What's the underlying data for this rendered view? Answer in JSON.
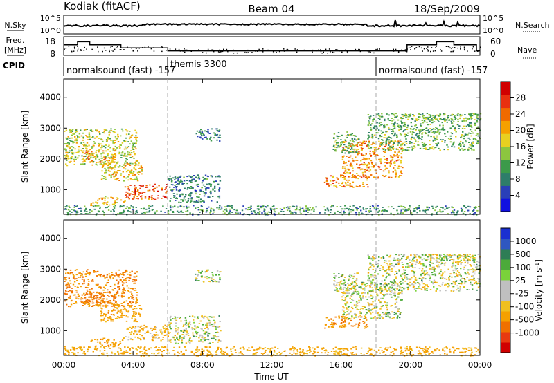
{
  "header": {
    "radar": "Kodiak (fitACF)",
    "beam": "Beam 04",
    "date": "18/Sep/2009"
  },
  "strip_labels": {
    "nsky": "N.Sky",
    "nsearch": "N.Search",
    "freq_line1": "Freq.",
    "freq_line2": "[MHz]",
    "nave": "Nave",
    "cpid": "CPID"
  },
  "noise_ticks_left": [
    "10^5",
    "10^0"
  ],
  "noise_ticks_right": [
    "10^5",
    "10^0"
  ],
  "freq_ticks_left": [
    "18",
    "8"
  ],
  "nave_ticks_right": [
    "60",
    "0"
  ],
  "cpid_segments": [
    {
      "label": "normalsound (fast) -157",
      "start_hour": 0
    },
    {
      "label": "themis 3300",
      "start_hour": 6
    },
    {
      "label": "normalsound (fast) -157",
      "start_hour": 18
    }
  ],
  "time_axis": {
    "label": "Time UT",
    "range_hours": [
      0,
      24
    ],
    "ticks": [
      "00:00",
      "04:00",
      "08:00",
      "12:00",
      "16:00",
      "20:00",
      "00:00"
    ]
  },
  "range_axis": {
    "label": "Slant Range [km]",
    "range_km": [
      200,
      4600
    ],
    "ticks": [
      "1000",
      "2000",
      "3000",
      "4000"
    ]
  },
  "power_colorbar": {
    "label": "Power [dB]",
    "ticks": [
      "4",
      "8",
      "12",
      "16",
      "20",
      "24",
      "28"
    ],
    "colors": [
      "#1010e0",
      "#2a3fb8",
      "#2e7d6a",
      "#3c9a4a",
      "#8cc63f",
      "#e8d020",
      "#f5a000",
      "#f06a00",
      "#e83010",
      "#d00000"
    ]
  },
  "velocity_colorbar": {
    "label": "Velocity [m s",
    "label_sup": "-1",
    "label_end": "]",
    "ticks": [
      "1000",
      "500",
      "100",
      "25",
      "-25",
      "-100",
      "-500",
      "-1000"
    ],
    "colors": [
      "#1a2fd0",
      "#2f57c0",
      "#2e7d55",
      "#4caa3a",
      "#7ad23a",
      "#c0c0c0",
      "#c0c0c0",
      "#f0c020",
      "#f5a000",
      "#f07000",
      "#e83a10",
      "#d00000"
    ]
  },
  "chart_data": {
    "type": "heatmap",
    "panels": [
      "Power [dB]",
      "Velocity [m s-1]"
    ],
    "x_unit": "hours UT",
    "y_unit": "km",
    "xlim": [
      0,
      24
    ],
    "ylim": [
      200,
      4600
    ],
    "scatter_regions": [
      {
        "x": [
          0.0,
          4.2
        ],
        "y": [
          1800,
          3000
        ],
        "power": 16,
        "velocity": -300
      },
      {
        "x": [
          1.0,
          3.0
        ],
        "y": [
          1900,
          2300
        ],
        "power": 22,
        "velocity": -400
      },
      {
        "x": [
          2.0,
          4.5
        ],
        "y": [
          1300,
          1900
        ],
        "power": 18,
        "velocity": -200
      },
      {
        "x": [
          3.5,
          6.0
        ],
        "y": [
          700,
          1200
        ],
        "power": 26,
        "velocity": -100
      },
      {
        "x": [
          1.5,
          3.5
        ],
        "y": [
          500,
          800
        ],
        "power": 20,
        "velocity": -200
      },
      {
        "x": [
          6.0,
          9.0
        ],
        "y": [
          600,
          1500
        ],
        "power": 8,
        "velocity": 0
      },
      {
        "x": [
          7.5,
          9.0
        ],
        "y": [
          2600,
          3000
        ],
        "power": 8,
        "velocity": 0
      },
      {
        "x": [
          15.0,
          17.5
        ],
        "y": [
          1100,
          1500
        ],
        "power": 22,
        "velocity": -300
      },
      {
        "x": [
          16.0,
          19.5
        ],
        "y": [
          1400,
          2600
        ],
        "power": 22,
        "velocity": 0
      },
      {
        "x": [
          15.5,
          17.0
        ],
        "y": [
          2200,
          2900
        ],
        "power": 12,
        "velocity": 0
      },
      {
        "x": [
          17.5,
          24.0
        ],
        "y": [
          2300,
          3500
        ],
        "power": 12,
        "velocity": 0
      },
      {
        "x": [
          19.5,
          24.0
        ],
        "y": [
          3300,
          3500
        ],
        "power": 14,
        "velocity": 0
      },
      {
        "x": [
          0.0,
          24.0
        ],
        "y": [
          200,
          500
        ],
        "power": 10,
        "velocity": -150
      }
    ],
    "freq_steps": [
      {
        "x": [
          0.0,
          0.8
        ],
        "y": 14
      },
      {
        "x": [
          0.8,
          1.5
        ],
        "y": 16
      },
      {
        "x": [
          1.5,
          3.3
        ],
        "y": 14
      },
      {
        "x": [
          3.3,
          6.0
        ],
        "y": 12
      },
      {
        "x": [
          6.0,
          18.0
        ],
        "y": 10
      },
      {
        "x": [
          18.0,
          19.8
        ],
        "y": 10
      },
      {
        "x": [
          19.8,
          21.5
        ],
        "y": 14
      },
      {
        "x": [
          21.5,
          22.5
        ],
        "y": 16
      },
      {
        "x": [
          22.5,
          23.8
        ],
        "y": 14
      },
      {
        "x": [
          23.8,
          24.0
        ],
        "y": 10
      }
    ]
  }
}
